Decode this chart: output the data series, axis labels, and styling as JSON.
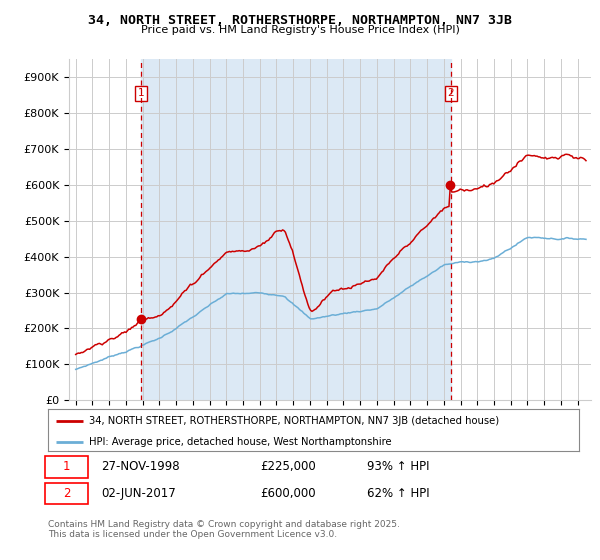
{
  "title": "34, NORTH STREET, ROTHERSTHORPE, NORTHAMPTON, NN7 3JB",
  "subtitle": "Price paid vs. HM Land Registry's House Price Index (HPI)",
  "legend_line1": "34, NORTH STREET, ROTHERSTHORPE, NORTHAMPTON, NN7 3JB (detached house)",
  "legend_line2": "HPI: Average price, detached house, West Northamptonshire",
  "footer": "Contains HM Land Registry data © Crown copyright and database right 2025.\nThis data is licensed under the Open Government Licence v3.0.",
  "sale1_date": "27-NOV-1998",
  "sale1_price": "£225,000",
  "sale1_hpi": "93% ↑ HPI",
  "sale2_date": "02-JUN-2017",
  "sale2_price": "£600,000",
  "sale2_hpi": "62% ↑ HPI",
  "red_color": "#cc0000",
  "blue_color": "#6baed6",
  "blue_fill": "#dce9f5",
  "grid_color": "#cccccc",
  "background_color": "#ffffff",
  "sale1_year": 1998.92,
  "sale1_value": 225000,
  "sale2_year": 2017.42,
  "sale2_value": 600000,
  "ylim_max": 950000,
  "xlim_min": 1994.6,
  "xlim_max": 2025.8
}
